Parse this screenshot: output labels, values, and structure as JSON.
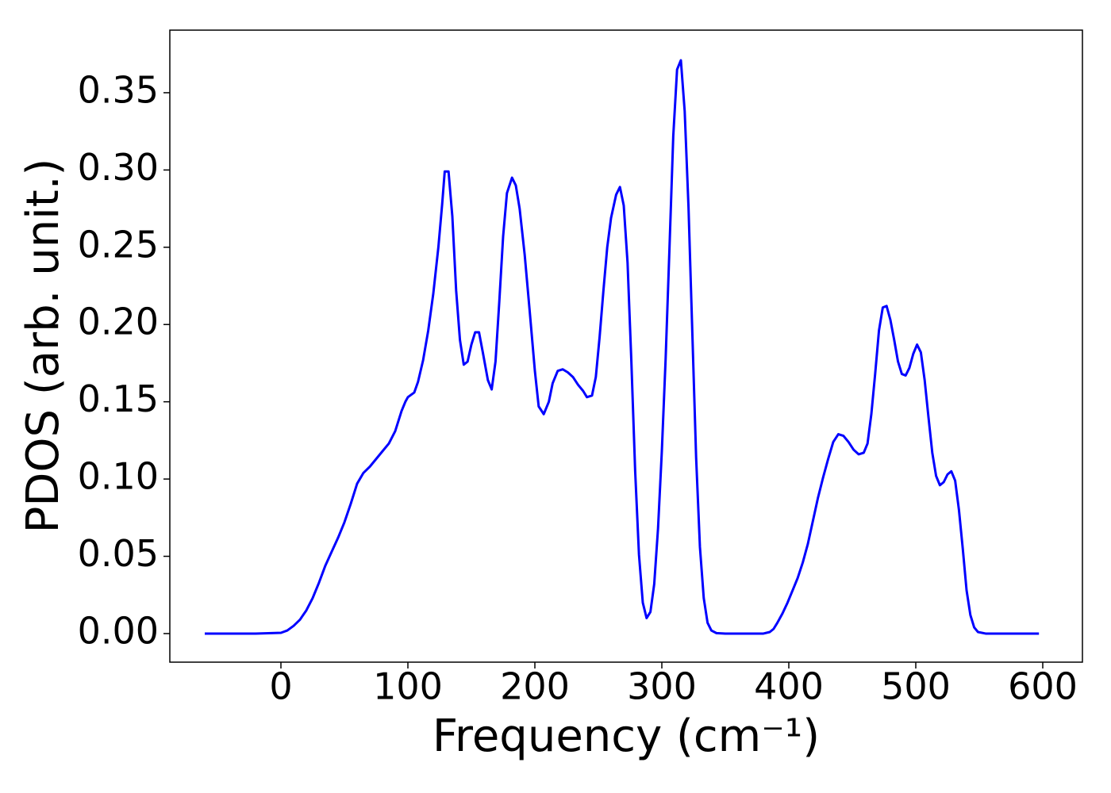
{
  "chart_data": {
    "type": "line",
    "xlabel": "Frequency (cm⁻¹)",
    "ylabel": "PDOS (arb. unit.)",
    "xlim": [
      -87.5,
      631.25
    ],
    "ylim": [
      -0.0185,
      0.3905
    ],
    "xticks": [
      0,
      100,
      200,
      300,
      400,
      500,
      600
    ],
    "yticks": [
      {
        "value": 0,
        "label": "0.00"
      },
      {
        "value": 0.05,
        "label": "0.05"
      },
      {
        "value": 0.1,
        "label": "0.10"
      },
      {
        "value": 0.15,
        "label": "0.15"
      },
      {
        "value": 0.2,
        "label": "0.20"
      },
      {
        "value": 0.25,
        "label": "0.25"
      },
      {
        "value": 0.3,
        "label": "0.30"
      },
      {
        "value": 0.35,
        "label": "0.35"
      }
    ],
    "x": [
      -60,
      -40,
      -20,
      0,
      5,
      10,
      15,
      20,
      25,
      30,
      35,
      40,
      45,
      50,
      55,
      60,
      65,
      70,
      75,
      80,
      85,
      90,
      95,
      98,
      100,
      105,
      108,
      112,
      116,
      120,
      124,
      127,
      129,
      132,
      135,
      138,
      141,
      144,
      147,
      150,
      153,
      156,
      159,
      163,
      166,
      169,
      172,
      175,
      178,
      182,
      185,
      188,
      192,
      196,
      200,
      203,
      207,
      211,
      214,
      218,
      222,
      226,
      230,
      234,
      238,
      241,
      245,
      248,
      251,
      254,
      257,
      260,
      264,
      267,
      270,
      273,
      276,
      279,
      282,
      285,
      288,
      291,
      294,
      297,
      300,
      303,
      306,
      309,
      312,
      315,
      318,
      321,
      324,
      327,
      330,
      333,
      336,
      339,
      343,
      350,
      380,
      385,
      388,
      391,
      395,
      399,
      403,
      407,
      411,
      415,
      419,
      423,
      427,
      431,
      435,
      439,
      443,
      447,
      451,
      455,
      459,
      462,
      465,
      468,
      471,
      474,
      477,
      480,
      483,
      486,
      489,
      492,
      495,
      498,
      501,
      504,
      507,
      510,
      513,
      516,
      519,
      522,
      525,
      528,
      531,
      534,
      537,
      540,
      543,
      546,
      549,
      555,
      597
    ],
    "series": [
      {
        "color": "#0000ff",
        "values": [
          0,
          0,
          0,
          0.0005,
          0.002,
          0.005,
          0.009,
          0.015,
          0.023,
          0.033,
          0.044,
          0.053,
          0.062,
          0.072,
          0.084,
          0.097,
          0.104,
          0.108,
          0.113,
          0.118,
          0.123,
          0.131,
          0.144,
          0.15,
          0.153,
          0.156,
          0.163,
          0.177,
          0.196,
          0.22,
          0.25,
          0.278,
          0.299,
          0.299,
          0.27,
          0.222,
          0.19,
          0.174,
          0.176,
          0.187,
          0.195,
          0.195,
          0.182,
          0.164,
          0.158,
          0.176,
          0.215,
          0.257,
          0.285,
          0.295,
          0.29,
          0.275,
          0.245,
          0.208,
          0.17,
          0.147,
          0.142,
          0.15,
          0.162,
          0.17,
          0.171,
          0.169,
          0.166,
          0.161,
          0.157,
          0.153,
          0.154,
          0.166,
          0.192,
          0.222,
          0.25,
          0.269,
          0.284,
          0.289,
          0.277,
          0.24,
          0.176,
          0.105,
          0.051,
          0.02,
          0.01,
          0.014,
          0.032,
          0.068,
          0.118,
          0.178,
          0.249,
          0.322,
          0.365,
          0.371,
          0.338,
          0.276,
          0.195,
          0.114,
          0.056,
          0.023,
          0.007,
          0.002,
          0.0003,
          0,
          0,
          0.001,
          0.003,
          0.007,
          0.013,
          0.02,
          0.028,
          0.036,
          0.046,
          0.058,
          0.073,
          0.088,
          0.101,
          0.113,
          0.124,
          0.129,
          0.128,
          0.124,
          0.119,
          0.116,
          0.117,
          0.123,
          0.142,
          0.168,
          0.196,
          0.211,
          0.212,
          0.203,
          0.19,
          0.176,
          0.168,
          0.167,
          0.172,
          0.181,
          0.187,
          0.182,
          0.164,
          0.14,
          0.117,
          0.102,
          0.096,
          0.098,
          0.103,
          0.105,
          0.099,
          0.08,
          0.055,
          0.028,
          0.012,
          0.004,
          0.001,
          0,
          0
        ]
      }
    ]
  }
}
